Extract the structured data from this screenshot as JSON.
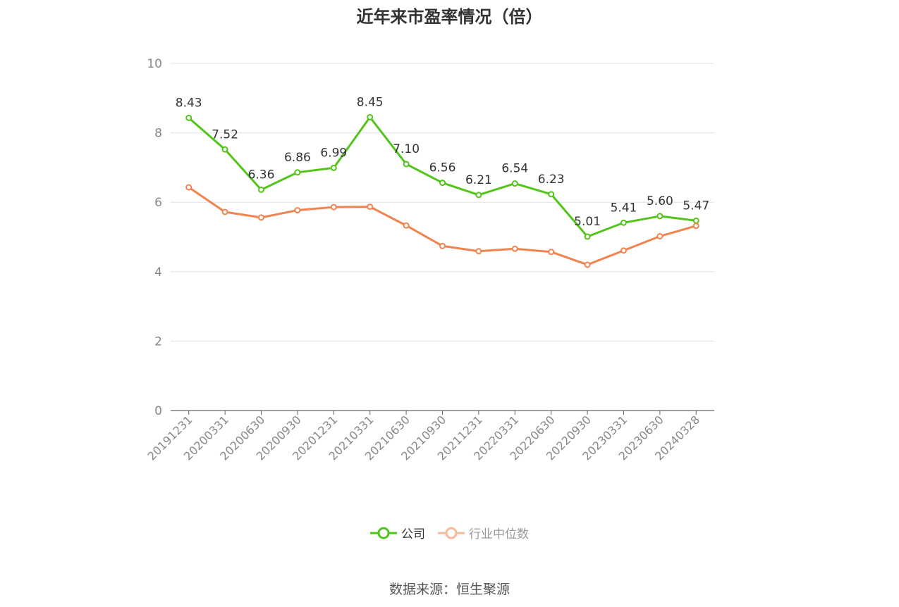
{
  "title": "近年来市盈率情况（倍）",
  "source": "数据来源：恒生聚源",
  "colors": {
    "company": "#52c41a",
    "industry": "#f0834e",
    "grid": "#e0e0ee",
    "axis": "#666666",
    "tick": "#888888"
  },
  "chart_data": {
    "type": "line",
    "title": "近年来市盈率情况（倍）",
    "categories": [
      "20191231",
      "20200331",
      "20200630",
      "20200930",
      "20201231",
      "20210331",
      "20210630",
      "20210930",
      "20211231",
      "20220331",
      "20220630",
      "20220930",
      "20230331",
      "20230630",
      "20240328"
    ],
    "ylim": [
      0,
      10
    ],
    "yticks": [
      0,
      2,
      4,
      6,
      8,
      10
    ],
    "grid": true,
    "legend_position": "bottom",
    "series": [
      {
        "name": "公司",
        "values": [
          8.43,
          7.52,
          6.36,
          6.86,
          6.99,
          8.45,
          7.1,
          6.56,
          6.21,
          6.54,
          6.23,
          5.01,
          5.41,
          5.6,
          5.47
        ],
        "labels": [
          "8.43",
          "7.52",
          "6.36",
          "6.86",
          "6.99",
          "8.45",
          "7.10",
          "6.56",
          "6.21",
          "6.54",
          "6.23",
          "5.01",
          "5.41",
          "5.60",
          "5.47"
        ],
        "show_labels": true
      },
      {
        "name": "行业中位数",
        "values": [
          6.43,
          5.72,
          5.56,
          5.77,
          5.86,
          5.87,
          5.33,
          4.74,
          4.59,
          4.66,
          4.57,
          4.2,
          4.61,
          5.02,
          5.32
        ],
        "show_labels": false
      }
    ]
  }
}
